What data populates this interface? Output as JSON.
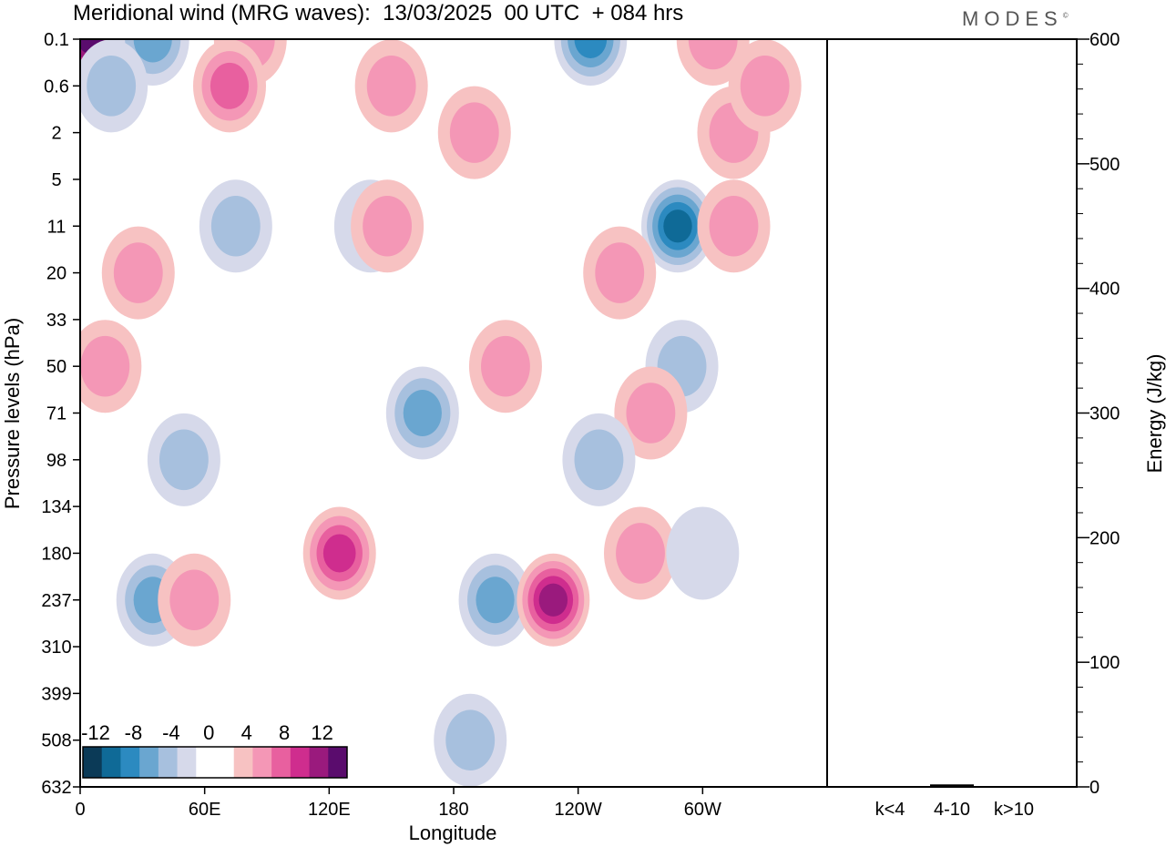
{
  "title": "Meridional wind (MRG waves):  13/03/2025  00 UTC  + 084 hrs",
  "logo": "MODES",
  "logo_mark": "©",
  "colors": {
    "neg": [
      "#0b3a57",
      "#0f6a97",
      "#2c8ac0",
      "#6aa6d0",
      "#a7c0de",
      "#d6d9ea"
    ],
    "pos": [
      "#f7c2c2",
      "#f497b6",
      "#e8609f",
      "#cf2d8e",
      "#9a1a7d",
      "#5a0c6d"
    ],
    "zero": "#ffffff"
  },
  "chart_data": [
    {
      "type": "heatmap",
      "title": "Meridional wind (MRG waves):  13/03/2025  00 UTC  + 084 hrs",
      "xlabel": "Longitude",
      "ylabel": "Pressure levels (hPa)",
      "x_ticks": [
        "0",
        "60E",
        "120E",
        "180",
        "120W",
        "60W"
      ],
      "x_tick_values": [
        0,
        60,
        120,
        180,
        240,
        300
      ],
      "xlim": [
        0,
        360
      ],
      "y_ticks": [
        "0.1",
        "0.6",
        "2",
        "5",
        "11",
        "20",
        "33",
        "50",
        "71",
        "98",
        "134",
        "180",
        "237",
        "310",
        "399",
        "508",
        "632"
      ],
      "y_axis": "pressure levels, top 0.1 hPa to bottom 632 hPa",
      "colorbar": {
        "labels": [
          "-12",
          "-8",
          "-4",
          "0",
          "4",
          "8",
          "12"
        ],
        "levels": [
          -12,
          -10,
          -8,
          -6,
          -4,
          -2,
          2,
          4,
          6,
          8,
          10,
          12
        ]
      },
      "features": [
        {
          "lon": 5,
          "level": 0.1,
          "v": 14
        },
        {
          "lon": 35,
          "level": 0.1,
          "v": -6
        },
        {
          "lon": 82,
          "level": 0.1,
          "v": 4
        },
        {
          "lon": 72,
          "level": 0.6,
          "v": 6
        },
        {
          "lon": 15,
          "level": 0.6,
          "v": -4
        },
        {
          "lon": 150,
          "level": 0.6,
          "v": 4
        },
        {
          "lon": 246,
          "level": 0.1,
          "v": -8
        },
        {
          "lon": 305,
          "level": 0.1,
          "v": 4
        },
        {
          "lon": 315,
          "level": 2,
          "v": 4
        },
        {
          "lon": 330,
          "level": 0.6,
          "v": 4
        },
        {
          "lon": 190,
          "level": 2,
          "v": 4
        },
        {
          "lon": 140,
          "level": 11,
          "v": -2
        },
        {
          "lon": 75,
          "level": 11,
          "v": -4
        },
        {
          "lon": 148,
          "level": 11,
          "v": 4
        },
        {
          "lon": 288,
          "level": 11,
          "v": -10
        },
        {
          "lon": 315,
          "level": 11,
          "v": 4
        },
        {
          "lon": 28,
          "level": 20,
          "v": 4
        },
        {
          "lon": 260,
          "level": 20,
          "v": 4
        },
        {
          "lon": 12,
          "level": 50,
          "v": 4
        },
        {
          "lon": 165,
          "level": 71,
          "v": -6
        },
        {
          "lon": 205,
          "level": 50,
          "v": 4
        },
        {
          "lon": 290,
          "level": 50,
          "v": -4
        },
        {
          "lon": 275,
          "level": 71,
          "v": 4
        },
        {
          "lon": 125,
          "level": 180,
          "v": 8
        },
        {
          "lon": 200,
          "level": 237,
          "v": -6
        },
        {
          "lon": 228,
          "level": 237,
          "v": 10
        },
        {
          "lon": 35,
          "level": 237,
          "v": -6
        },
        {
          "lon": 50,
          "level": 98,
          "v": -4
        },
        {
          "lon": 55,
          "level": 237,
          "v": 4
        },
        {
          "lon": 250,
          "level": 98,
          "v": -4
        },
        {
          "lon": 270,
          "level": 180,
          "v": 4
        },
        {
          "lon": 300,
          "level": 180,
          "v": -2
        },
        {
          "lon": 188,
          "level": 508,
          "v": -4
        }
      ]
    },
    {
      "type": "bar",
      "ylabel": "Energy (J/kg)",
      "categories": [
        "k<4",
        "4-10",
        "k>10"
      ],
      "values": [
        0.5,
        2,
        0.5
      ],
      "ylim": [
        0,
        600
      ],
      "y_ticks": [
        "0",
        "100",
        "200",
        "300",
        "400",
        "500",
        "600"
      ]
    }
  ]
}
